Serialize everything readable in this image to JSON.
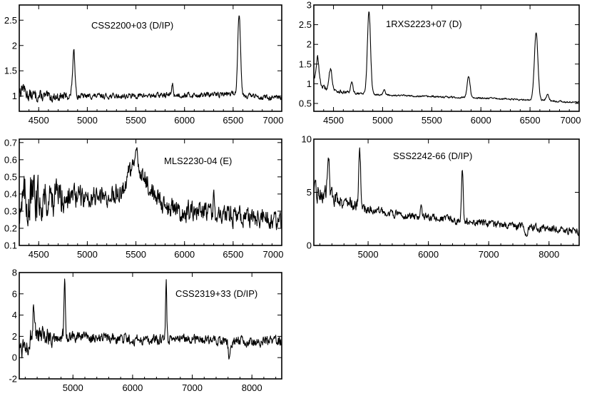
{
  "chart_data": [
    {
      "type": "line",
      "title": "CSS2200+03 (D/IP)",
      "xlim": [
        4300,
        7000
      ],
      "ylim": [
        0.7,
        2.8
      ],
      "xticks": [
        4500,
        5000,
        5500,
        6000,
        6500,
        7000
      ],
      "yticks": [
        1,
        1.5,
        2,
        2.5
      ],
      "xticklabels": [
        "4500",
        "5000",
        "5500",
        "6000",
        "6500",
        "7000"
      ],
      "yticklabels": [
        "1",
        "1.5",
        "2",
        "2.5"
      ],
      "grid": false,
      "series": [
        {
          "continuum": [
            [
              4300,
              1.12
            ],
            [
              4400,
              1.02
            ],
            [
              4600,
              0.98
            ],
            [
              4800,
              1.0
            ],
            [
              5000,
              1.0
            ],
            [
              5400,
              1.0
            ],
            [
              5800,
              1.02
            ],
            [
              6200,
              1.02
            ],
            [
              6500,
              1.05
            ],
            [
              6700,
              1.0
            ],
            [
              7000,
              0.95
            ]
          ],
          "noise": 0.045,
          "lines": [
            [
              4340,
              0.12,
              12
            ],
            [
              4861,
              0.85,
              13
            ],
            [
              5875,
              0.22,
              8
            ],
            [
              6562,
              1.62,
              14
            ]
          ]
        }
      ]
    },
    {
      "type": "line",
      "title": "1RXS2223+07 (D)",
      "xlim": [
        4300,
        7000
      ],
      "ylim": [
        0.3,
        3.0
      ],
      "xticks": [
        4500,
        5000,
        5500,
        6000,
        6500,
        7000
      ],
      "yticks": [
        0.5,
        1,
        1.5,
        2,
        2.5,
        3
      ],
      "xticklabels": [
        "4500",
        "5000",
        "5500",
        "6000",
        "6500",
        "7000"
      ],
      "yticklabels": [
        "0.5",
        "1",
        "1.5",
        "2",
        "2.5",
        "3"
      ],
      "grid": false,
      "series": [
        {
          "continuum": [
            [
              4300,
              1.2
            ],
            [
              4400,
              0.9
            ],
            [
              4600,
              0.78
            ],
            [
              4800,
              0.75
            ],
            [
              5000,
              0.72
            ],
            [
              5400,
              0.68
            ],
            [
              5800,
              0.65
            ],
            [
              6200,
              0.62
            ],
            [
              6600,
              0.58
            ],
            [
              7000,
              0.52
            ]
          ],
          "noise": 0.02,
          "lines": [
            [
              4340,
              0.6,
              12
            ],
            [
              4471,
              0.55,
              14
            ],
            [
              4686,
              0.25,
              12
            ],
            [
              4861,
              2.1,
              16
            ],
            [
              5015,
              0.15,
              10
            ],
            [
              5875,
              0.55,
              15
            ],
            [
              6562,
              1.72,
              18
            ],
            [
              6678,
              0.15,
              14
            ]
          ]
        }
      ]
    },
    {
      "type": "line",
      "title": "MLS2230-04 (E)",
      "xlim": [
        4300,
        7000
      ],
      "ylim": [
        0.1,
        0.72
      ],
      "xticks": [
        4500,
        5000,
        5500,
        6000,
        6500,
        7000
      ],
      "yticks": [
        0.1,
        0.2,
        0.3,
        0.4,
        0.5,
        0.6,
        0.7
      ],
      "xticklabels": [
        "4500",
        "5000",
        "5500",
        "6000",
        "6500",
        "7000"
      ],
      "yticklabels": [
        "0.1",
        "0.2",
        "0.3",
        "0.4",
        "0.5",
        "0.6",
        "0.7"
      ],
      "grid": false,
      "series": [
        {
          "continuum": [
            [
              4300,
              0.36
            ],
            [
              4500,
              0.38
            ],
            [
              4800,
              0.39
            ],
            [
              5000,
              0.38
            ],
            [
              5200,
              0.38
            ],
            [
              5350,
              0.42
            ],
            [
              5500,
              0.6
            ],
            [
              5650,
              0.42
            ],
            [
              5800,
              0.34
            ],
            [
              6000,
              0.3
            ],
            [
              6300,
              0.28
            ],
            [
              6600,
              0.26
            ],
            [
              7000,
              0.24
            ]
          ],
          "noise": 0.05,
          "lines": [
            [
              6300,
              0.2,
              5
            ]
          ]
        }
      ]
    },
    {
      "type": "line",
      "title": "SSS2242-66 (D/IP)",
      "xlim": [
        4100,
        8500
      ],
      "ylim": [
        0,
        10
      ],
      "xticks": [
        5000,
        6000,
        7000,
        8000
      ],
      "yticks": [
        0,
        5,
        10
      ],
      "xticklabels": [
        "5000",
        "6000",
        "7000",
        "8000"
      ],
      "yticklabels": [
        "0",
        "5",
        "10"
      ],
      "grid": false,
      "series": [
        {
          "continuum": [
            [
              4100,
              5.0
            ],
            [
              4400,
              4.6
            ],
            [
              4700,
              4.0
            ],
            [
              5000,
              3.4
            ],
            [
              5500,
              2.9
            ],
            [
              6000,
              2.6
            ],
            [
              6500,
              2.3
            ],
            [
              7000,
              2.0
            ],
            [
              7500,
              1.8
            ],
            [
              8000,
              1.6
            ],
            [
              8500,
              1.3
            ]
          ],
          "noise": 0.3,
          "lines": [
            [
              4340,
              4.5,
              15
            ],
            [
              4861,
              5.5,
              15
            ],
            [
              5875,
              1.3,
              12
            ],
            [
              6562,
              4.6,
              14
            ],
            [
              7620,
              -1.0,
              20
            ]
          ]
        }
      ]
    },
    {
      "type": "line",
      "title": "CSS2319+33 (D/IP)",
      "xlim": [
        4100,
        8500
      ],
      "ylim": [
        -2,
        8
      ],
      "xticks": [
        5000,
        6000,
        7000,
        8000
      ],
      "yticks": [
        -2,
        0,
        2,
        4,
        6,
        8
      ],
      "xticklabels": [
        "5000",
        "6000",
        "7000",
        "8000"
      ],
      "yticklabels": [
        "-2",
        "0",
        "2",
        "4",
        "6",
        "8"
      ],
      "grid": false,
      "series": [
        {
          "continuum": [
            [
              4100,
              1.0
            ],
            [
              4300,
              1.8
            ],
            [
              4600,
              2.0
            ],
            [
              4900,
              2.0
            ],
            [
              5400,
              1.8
            ],
            [
              6000,
              1.7
            ],
            [
              6500,
              1.7
            ],
            [
              7000,
              1.7
            ],
            [
              7500,
              1.6
            ],
            [
              7800,
              1.5
            ],
            [
              8500,
              1.5
            ]
          ],
          "noise": 0.4,
          "lines": [
            [
              4340,
              3.5,
              10
            ],
            [
              4861,
              5.5,
              10
            ],
            [
              5875,
              0.8,
              10
            ],
            [
              6562,
              5.5,
              10
            ],
            [
              7620,
              -1.3,
              18
            ]
          ]
        }
      ]
    }
  ]
}
